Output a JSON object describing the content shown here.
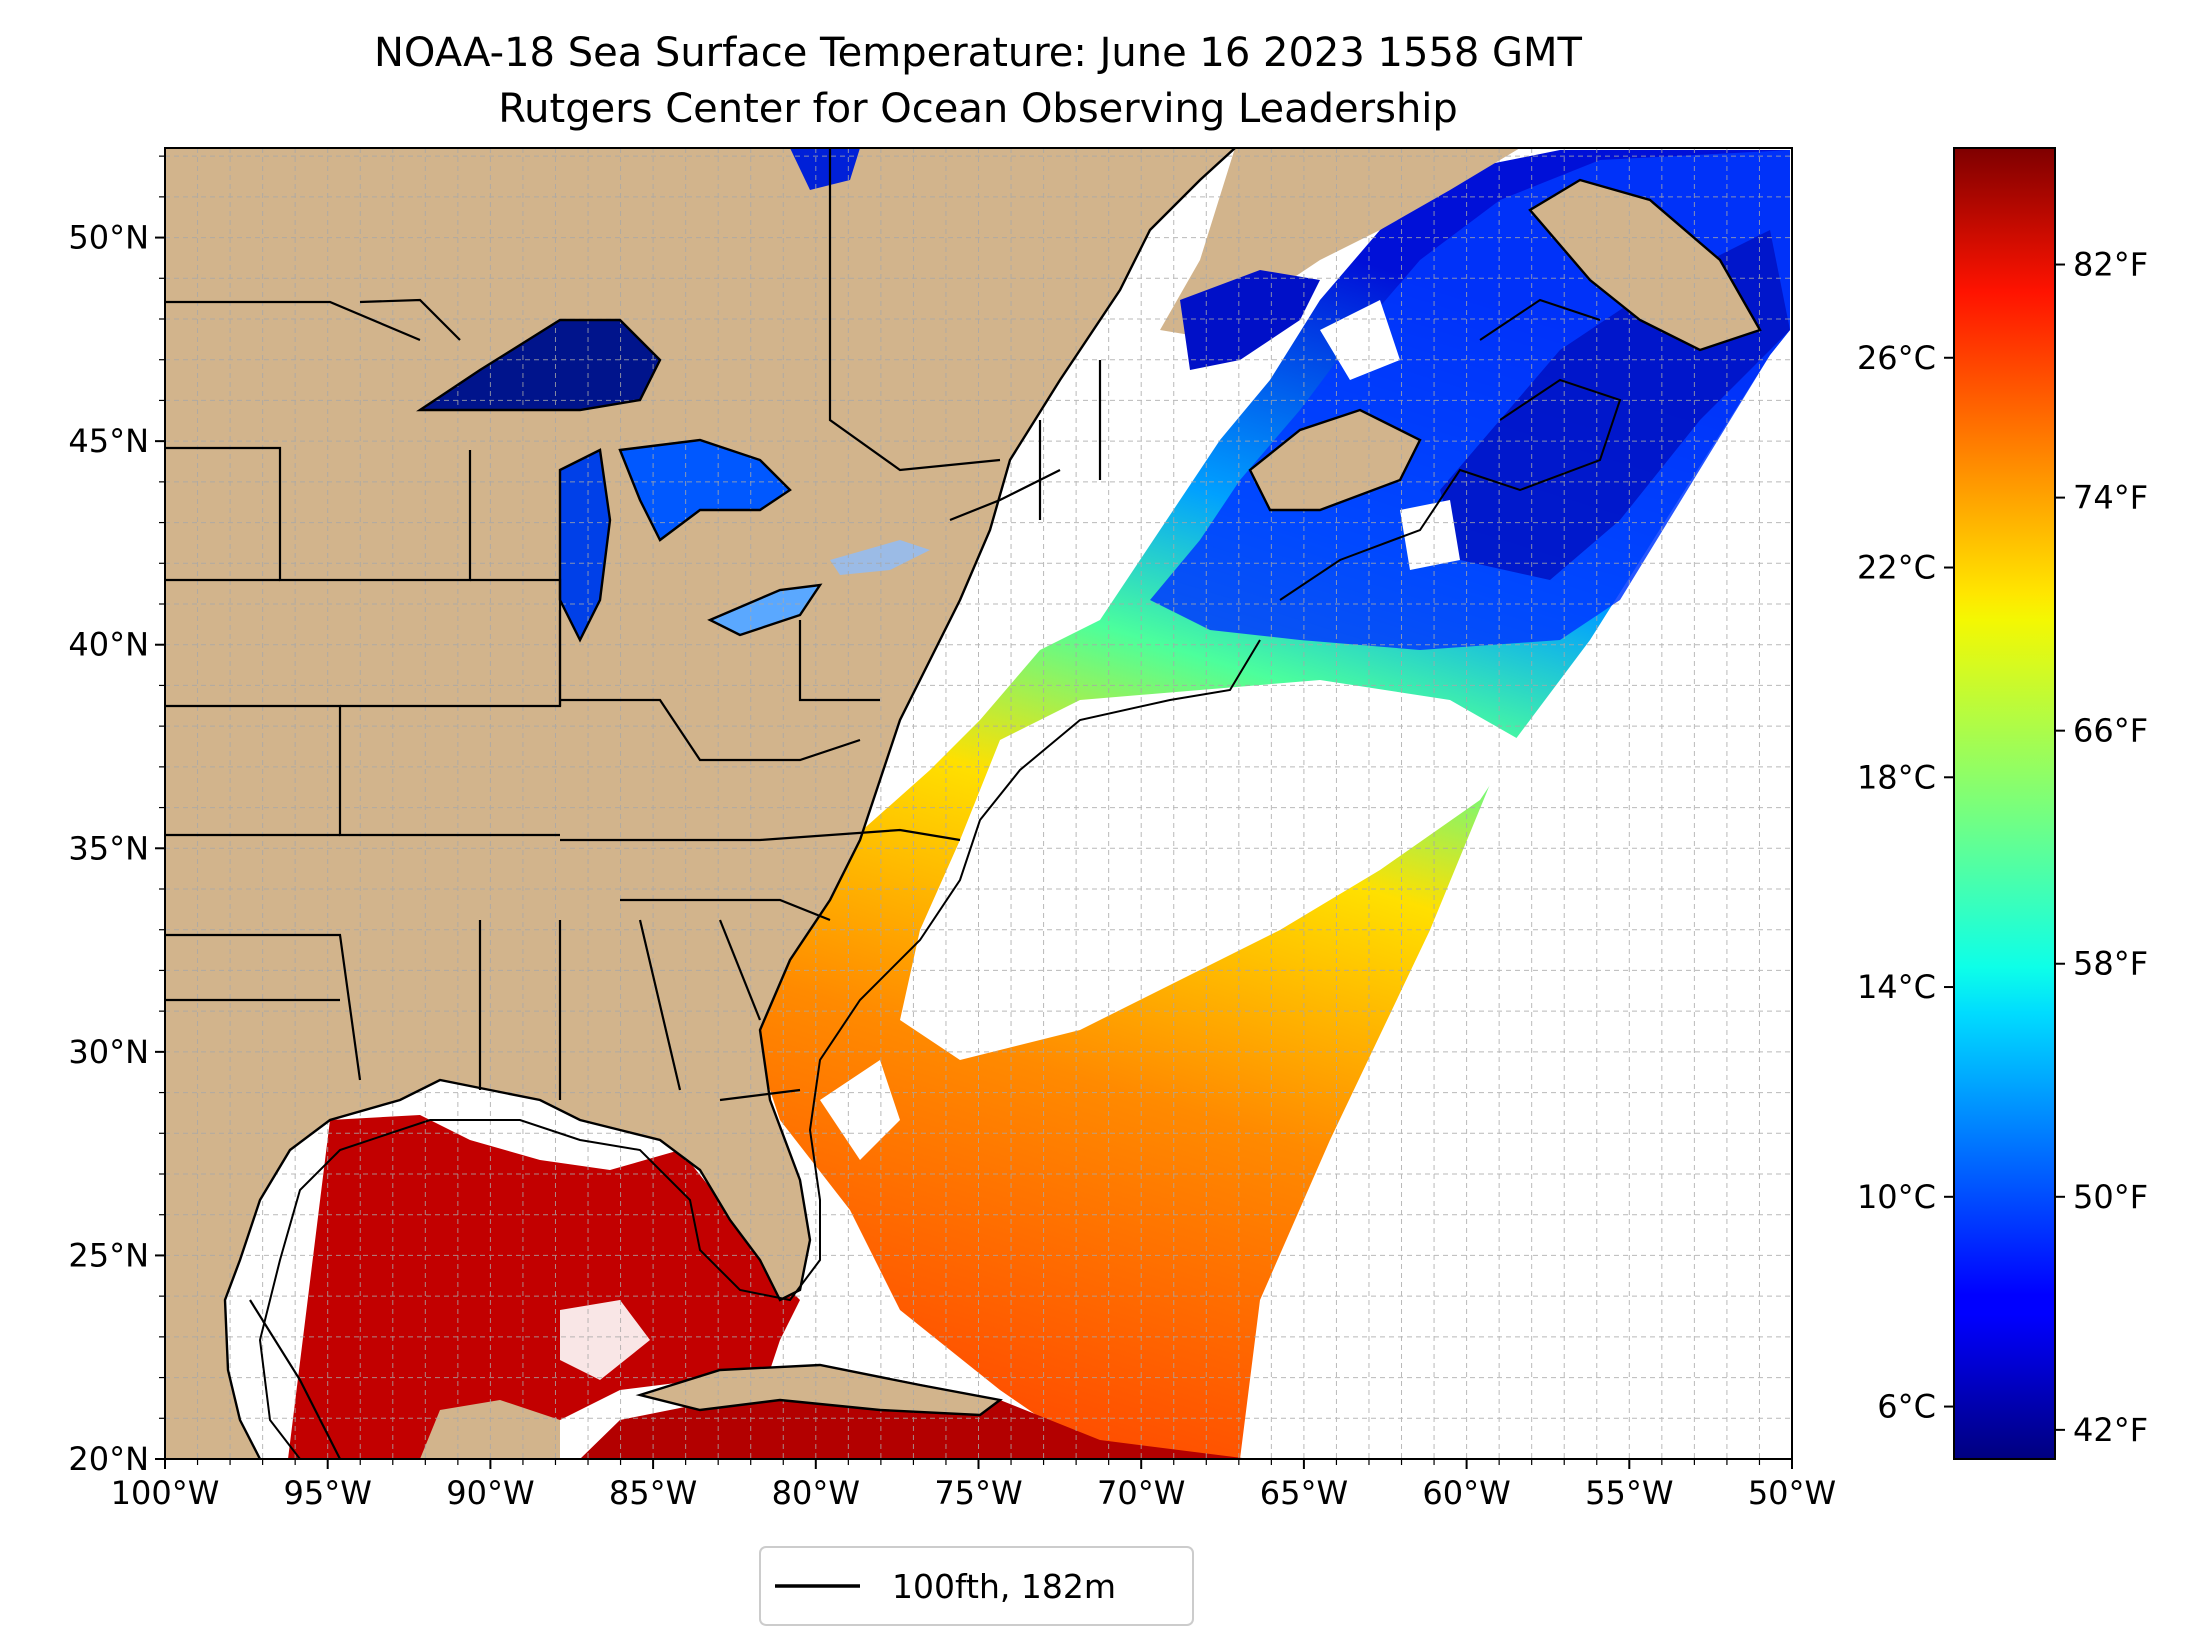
{
  "title": {
    "line1": "NOAA-18 Sea Surface Temperature: June 16 2023 1558 GMT",
    "line2": "Rutgers Center for Ocean Observing Leadership"
  },
  "map": {
    "lon_range": [
      -100,
      -50
    ],
    "lat_range": [
      20,
      52.2
    ],
    "gridlines": "on",
    "projection": "plate carree",
    "lat_ticks": [
      {
        "value": 20,
        "label": "20°N"
      },
      {
        "value": 25,
        "label": "25°N"
      },
      {
        "value": 30,
        "label": "30°N"
      },
      {
        "value": 35,
        "label": "35°N"
      },
      {
        "value": 40,
        "label": "40°N"
      },
      {
        "value": 45,
        "label": "45°N"
      },
      {
        "value": 50,
        "label": "50°N"
      }
    ],
    "lon_ticks": [
      {
        "value": -100,
        "label": "100°W"
      },
      {
        "value": -95,
        "label": "95°W"
      },
      {
        "value": -90,
        "label": "90°W"
      },
      {
        "value": -85,
        "label": "85°W"
      },
      {
        "value": -80,
        "label": "80°W"
      },
      {
        "value": -75,
        "label": "75°W"
      },
      {
        "value": -70,
        "label": "70°W"
      },
      {
        "value": -65,
        "label": "65°W"
      },
      {
        "value": -60,
        "label": "60°W"
      },
      {
        "value": -55,
        "label": "55°W"
      },
      {
        "value": -50,
        "label": "50°W"
      }
    ],
    "colors": {
      "land": "#d2b48c",
      "lakes_cloud": "#9bbbe6",
      "no_data": "#ffffff",
      "boundaries": "#000000",
      "grid": "#b0b0b0"
    }
  },
  "colorbar": {
    "colormap": "jet",
    "range_celsius": [
      5,
      30
    ],
    "celsius_ticks": [
      {
        "value": 6,
        "label": "6°C"
      },
      {
        "value": 10,
        "label": "10°C"
      },
      {
        "value": 14,
        "label": "14°C"
      },
      {
        "value": 18,
        "label": "18°C"
      },
      {
        "value": 22,
        "label": "22°C"
      },
      {
        "value": 26,
        "label": "26°C"
      }
    ],
    "fahrenheit_ticks": [
      {
        "value": 42,
        "label": "42°F"
      },
      {
        "value": 50,
        "label": "50°F"
      },
      {
        "value": 58,
        "label": "58°F"
      },
      {
        "value": 66,
        "label": "66°F"
      },
      {
        "value": 74,
        "label": "74°F"
      },
      {
        "value": 82,
        "label": "82°F"
      }
    ]
  },
  "legend": {
    "label": "100fth, 182m",
    "placement": "bottom-center"
  }
}
